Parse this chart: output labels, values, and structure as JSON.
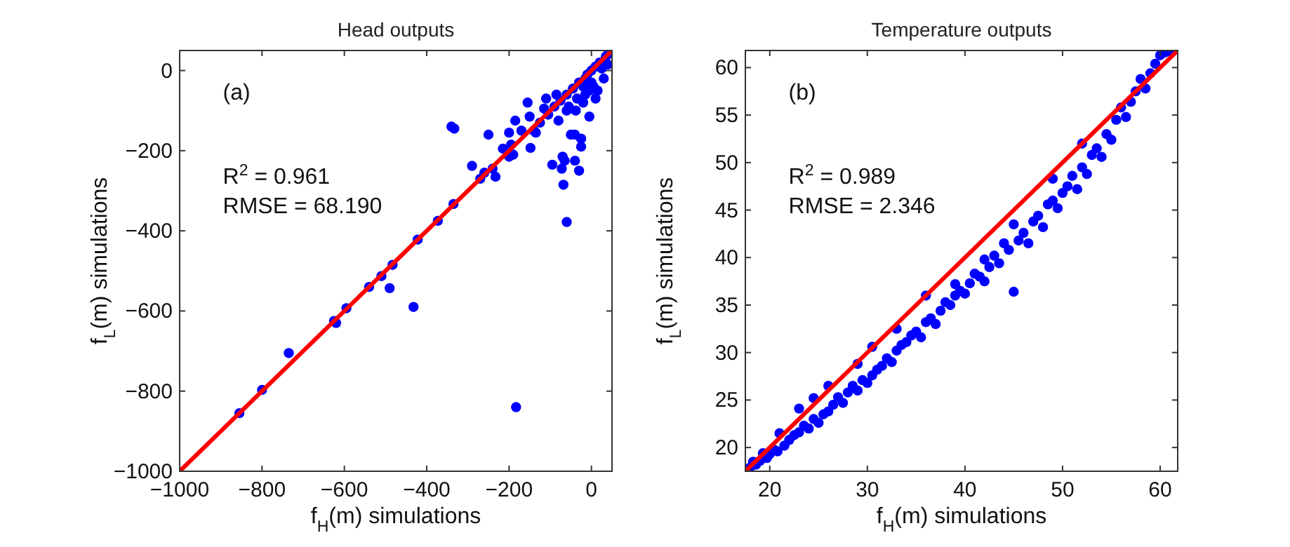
{
  "chart_data": [
    {
      "type": "scatter",
      "title": "Head outputs",
      "xlabel": "f$_{H}$(m) simulations",
      "ylabel": "f$_{L}$(m) simulations",
      "annotations": [
        "(a)",
        "R$^{2}$ = 0.961",
        "RMSE = 68.190"
      ],
      "xlim": [
        -1000,
        50
      ],
      "ylim": [
        -1000,
        50
      ],
      "xticks": [
        -1000,
        -800,
        -600,
        -400,
        -200,
        0
      ],
      "yticks": [
        -1000,
        -800,
        -600,
        -400,
        -200,
        0
      ],
      "grid": false,
      "series": [
        {
          "marker": "circle",
          "color": "#0000ff",
          "x": [
            -855,
            -800,
            -735,
            -625,
            -620,
            -595,
            -540,
            -490,
            -510,
            -483,
            -432,
            -422,
            -373,
            -335,
            -340,
            -333,
            -290,
            -270,
            -260,
            -250,
            -240,
            -233,
            -215,
            -200,
            -200,
            -195,
            -190,
            -185,
            -183,
            -170,
            -155,
            -150,
            -148,
            -140,
            -135,
            -125,
            -115,
            -110,
            -105,
            -95,
            -90,
            -85,
            -80,
            -75,
            -72,
            -70,
            -68,
            -65,
            -60,
            -60,
            -55,
            -50,
            -45,
            -40,
            -40,
            -38,
            -30,
            -30,
            -25,
            -25,
            -20,
            -15,
            -10,
            -5,
            0,
            5,
            10,
            15,
            20,
            25,
            30,
            35,
            40,
            40,
            -20,
            -35,
            -60,
            -15,
            -5,
            10,
            0
          ],
          "values": [
            -855,
            -797,
            -705,
            -625,
            -630,
            -593,
            -540,
            -543,
            -513,
            -485,
            -590,
            -422,
            -375,
            -333,
            -140,
            -145,
            -238,
            -270,
            -255,
            -160,
            -245,
            -265,
            -195,
            -155,
            -215,
            -185,
            -210,
            -125,
            -840,
            -150,
            -80,
            -115,
            -193,
            -150,
            -155,
            -130,
            -95,
            -70,
            -110,
            -235,
            -90,
            -60,
            -125,
            -75,
            -245,
            -215,
            -285,
            -225,
            -378,
            -60,
            -90,
            -160,
            -45,
            -225,
            -160,
            -100,
            -250,
            -30,
            -190,
            -170,
            -80,
            -60,
            -10,
            -115,
            0,
            -40,
            10,
            -50,
            20,
            5,
            -20,
            35,
            40,
            15,
            -40,
            -70,
            -100,
            -20,
            -50,
            -70,
            -30
          ]
        },
        {
          "type": "line",
          "color": "#ff0000",
          "x": [
            -1000,
            50
          ],
          "values": [
            -1000,
            50
          ]
        }
      ]
    },
    {
      "type": "scatter",
      "title": "Temperature outputs",
      "xlabel": "f$_{H}$(m) simulations",
      "ylabel": "f$_{L}$(m) simulations",
      "annotations": [
        "(b)",
        "R$^{2}$ = 0.989",
        "RMSE = 2.346"
      ],
      "xlim": [
        17.5,
        61.8
      ],
      "ylim": [
        17.5,
        61.8
      ],
      "xticks": [
        20,
        30,
        40,
        50,
        60
      ],
      "yticks": [
        20,
        25,
        30,
        35,
        40,
        45,
        50,
        55,
        60
      ],
      "grid": false,
      "series": [
        {
          "marker": "circle",
          "color": "#0000ff",
          "x": [
            18,
            18.3,
            18.6,
            19,
            19.3,
            19.7,
            20,
            20.4,
            20.8,
            21,
            21.5,
            22,
            22.5,
            23,
            23,
            23.5,
            24,
            24.5,
            24.5,
            25,
            25.5,
            26,
            26,
            26.5,
            27,
            27.5,
            28,
            28.5,
            29,
            29,
            29.5,
            30,
            30.5,
            30.5,
            31,
            31.5,
            32,
            32.5,
            33,
            33,
            33.5,
            34,
            34.5,
            35,
            35.5,
            36,
            36,
            36.5,
            37,
            37.5,
            38,
            38.5,
            39,
            39,
            39.5,
            40,
            40.5,
            41,
            41.5,
            42,
            42,
            42.5,
            43,
            43.5,
            44,
            44.5,
            45,
            45,
            45.5,
            46,
            46.5,
            47,
            47.5,
            48,
            48.5,
            49,
            49,
            49.5,
            50,
            50.5,
            51,
            51.5,
            52,
            52,
            52.5,
            53,
            53.5,
            54,
            54.5,
            55,
            55.5,
            56,
            56.5,
            57,
            57.5,
            58,
            58.5,
            59,
            59.5,
            60,
            60.5,
            61
          ],
          "values": [
            17.9,
            18.5,
            18.2,
            18.6,
            19.4,
            18.9,
            19.3,
            19.8,
            19.6,
            21.5,
            20.2,
            20.8,
            21.3,
            24.1,
            21.6,
            22.3,
            22.0,
            25.2,
            23.0,
            22.6,
            23.5,
            26.5,
            23.8,
            24.5,
            25.3,
            24.7,
            25.8,
            26.5,
            28.8,
            26.0,
            27.1,
            26.8,
            30.6,
            27.6,
            28.2,
            28.6,
            29.4,
            29.0,
            32.5,
            30.2,
            30.8,
            31.1,
            31.8,
            32.2,
            31.6,
            36.0,
            33.2,
            33.6,
            33.0,
            34.4,
            35.3,
            35.0,
            37.2,
            36.0,
            36.5,
            36.2,
            37.3,
            38.3,
            38.0,
            39.8,
            37.5,
            39.0,
            40.2,
            39.4,
            41.5,
            40.8,
            43.5,
            36.4,
            41.8,
            42.6,
            41.5,
            43.8,
            44.4,
            43.2,
            45.6,
            48.3,
            46.0,
            45.2,
            46.8,
            47.5,
            48.6,
            47.2,
            52.0,
            49.5,
            48.8,
            50.8,
            51.5,
            50.6,
            53.0,
            52.4,
            54.5,
            55.8,
            54.8,
            56.4,
            57.5,
            58.8,
            57.8,
            59.4,
            60.4,
            61.3,
            61.6,
            61.7
          ]
        },
        {
          "type": "line",
          "color": "#ff0000",
          "x": [
            17.5,
            61.8
          ],
          "values": [
            17.5,
            61.8
          ]
        }
      ]
    }
  ]
}
